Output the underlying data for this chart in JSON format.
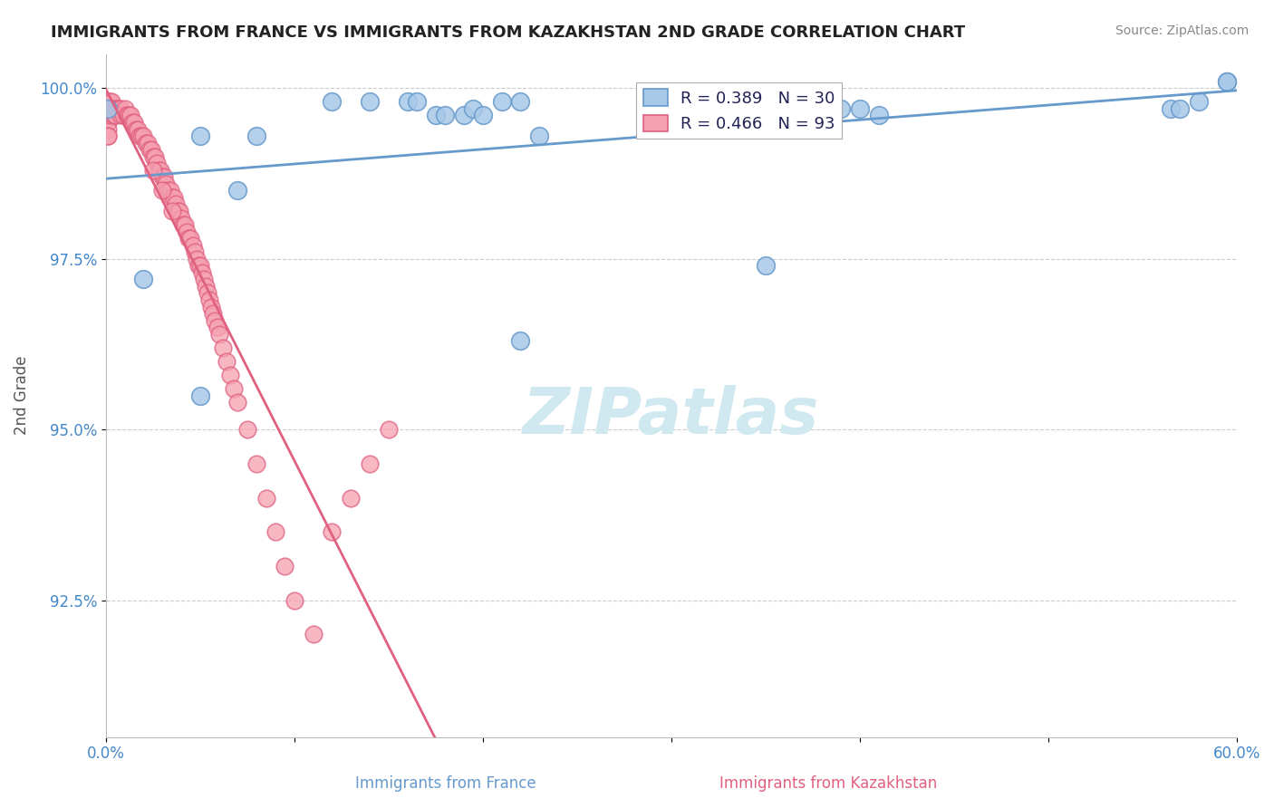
{
  "title": "IMMIGRANTS FROM FRANCE VS IMMIGRANTS FROM KAZAKHSTAN 2ND GRADE CORRELATION CHART",
  "source_text": "Source: ZipAtlas.com",
  "xlabel_france": "Immigrants from France",
  "xlabel_kazakhstan": "Immigrants from Kazakhstan",
  "ylabel": "2nd Grade",
  "xlim": [
    0.0,
    0.6
  ],
  "ylim": [
    0.905,
    1.005
  ],
  "yticks": [
    0.925,
    0.95,
    0.975,
    1.0
  ],
  "ytick_labels": [
    "92.5%",
    "95.0%",
    "97.5%",
    "100.0%"
  ],
  "xticks": [
    0.0,
    0.1,
    0.2,
    0.3,
    0.4,
    0.5,
    0.6
  ],
  "xtick_labels": [
    "0.0%",
    "",
    "",
    "",
    "",
    "",
    "60.0%"
  ],
  "france_color": "#a8c8e8",
  "france_edge": "#6699cc",
  "kazakhstan_color": "#f5a0b0",
  "kazakhstan_edge": "#e06080",
  "france_R": 0.389,
  "france_N": 30,
  "kazakhstan_R": 0.466,
  "kazakhstan_N": 93,
  "france_x": [
    0.001,
    0.02,
    0.05,
    0.08,
    0.12,
    0.14,
    0.16,
    0.165,
    0.175,
    0.18,
    0.19,
    0.195,
    0.2,
    0.21,
    0.22,
    0.23,
    0.35,
    0.37,
    0.38,
    0.39,
    0.4,
    0.41,
    0.565,
    0.57,
    0.58,
    0.595,
    0.05,
    0.07,
    0.22,
    0.595
  ],
  "france_y": [
    0.997,
    0.972,
    0.993,
    0.993,
    0.998,
    0.998,
    0.998,
    0.998,
    0.996,
    0.996,
    0.996,
    0.997,
    0.996,
    0.998,
    0.963,
    0.993,
    0.974,
    0.997,
    0.997,
    0.997,
    0.997,
    0.996,
    0.997,
    0.997,
    0.998,
    1.001,
    0.955,
    0.985,
    0.998,
    1.001
  ],
  "kazakhstan_x": [
    0.001,
    0.001,
    0.001,
    0.001,
    0.001,
    0.001,
    0.001,
    0.001,
    0.001,
    0.002,
    0.002,
    0.002,
    0.003,
    0.003,
    0.004,
    0.004,
    0.005,
    0.005,
    0.006,
    0.007,
    0.008,
    0.008,
    0.009,
    0.01,
    0.011,
    0.012,
    0.013,
    0.014,
    0.015,
    0.016,
    0.017,
    0.018,
    0.019,
    0.02,
    0.021,
    0.022,
    0.023,
    0.024,
    0.025,
    0.026,
    0.027,
    0.028,
    0.029,
    0.03,
    0.031,
    0.032,
    0.033,
    0.034,
    0.035,
    0.036,
    0.037,
    0.038,
    0.039,
    0.04,
    0.041,
    0.042,
    0.043,
    0.044,
    0.045,
    0.046,
    0.047,
    0.048,
    0.049,
    0.05,
    0.051,
    0.052,
    0.053,
    0.054,
    0.055,
    0.056,
    0.057,
    0.058,
    0.059,
    0.06,
    0.062,
    0.064,
    0.066,
    0.068,
    0.07,
    0.075,
    0.08,
    0.085,
    0.09,
    0.095,
    0.1,
    0.11,
    0.12,
    0.13,
    0.14,
    0.15,
    0.025,
    0.03,
    0.035
  ],
  "kazakhstan_y": [
    0.998,
    0.997,
    0.996,
    0.996,
    0.995,
    0.995,
    0.994,
    0.993,
    0.993,
    0.998,
    0.997,
    0.996,
    0.998,
    0.997,
    0.997,
    0.996,
    0.997,
    0.996,
    0.997,
    0.997,
    0.997,
    0.996,
    0.996,
    0.997,
    0.996,
    0.996,
    0.996,
    0.995,
    0.995,
    0.994,
    0.994,
    0.993,
    0.993,
    0.993,
    0.992,
    0.992,
    0.991,
    0.991,
    0.99,
    0.99,
    0.989,
    0.988,
    0.988,
    0.987,
    0.987,
    0.986,
    0.985,
    0.985,
    0.984,
    0.984,
    0.983,
    0.982,
    0.982,
    0.981,
    0.98,
    0.98,
    0.979,
    0.978,
    0.978,
    0.977,
    0.976,
    0.975,
    0.974,
    0.974,
    0.973,
    0.972,
    0.971,
    0.97,
    0.969,
    0.968,
    0.967,
    0.966,
    0.965,
    0.964,
    0.962,
    0.96,
    0.958,
    0.956,
    0.954,
    0.95,
    0.945,
    0.94,
    0.935,
    0.93,
    0.925,
    0.92,
    0.935,
    0.94,
    0.945,
    0.95,
    0.988,
    0.985,
    0.982
  ],
  "background_color": "#ffffff",
  "grid_color": "#cccccc",
  "title_color": "#222222",
  "axis_label_color": "#555555",
  "tick_label_color": "#4488cc",
  "legend_text_color": "#222255",
  "watermark_text": "ZIPatlas",
  "watermark_color": "#d0e8f0"
}
